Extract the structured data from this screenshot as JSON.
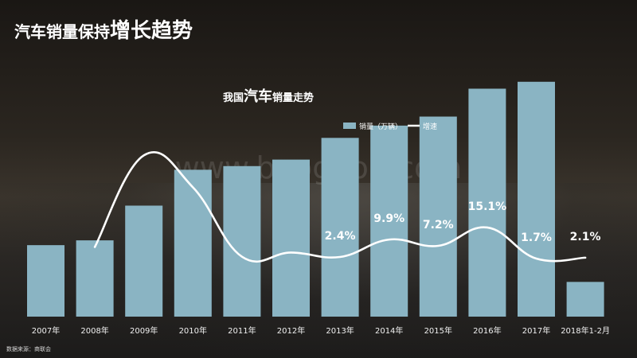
{
  "title": {
    "prefix": "汽车销量保持",
    "highlight": "增长趋势"
  },
  "subtitle": {
    "prefix": "我国",
    "highlight": "汽车",
    "suffix": "销量走势"
  },
  "source": "数据来源：商联会",
  "watermark": "www.baogao8.com",
  "colors": {
    "bar": "#8ab4c3",
    "line": "#ffffff",
    "text": "#ffffff"
  },
  "chart_data": {
    "type": "bar",
    "categories": [
      "2007年",
      "2008年",
      "2009年",
      "2010年",
      "2011年",
      "2012年",
      "2013年",
      "2014年",
      "2015年",
      "2016年",
      "2017年",
      "2018年1-2月"
    ],
    "series": [
      {
        "name": "销量（万辆）",
        "type": "bar",
        "values": [
          879,
          938,
          1365,
          1806,
          1851,
          1931,
          2198,
          2349,
          2460,
          2803,
          2888,
          427
        ]
      },
      {
        "name": "增速",
        "type": "line",
        "values": [
          null,
          6.7,
          46.2,
          32.4,
          2.5,
          4.3,
          2.4,
          9.9,
          7.2,
          15.1,
          1.7,
          2.1
        ]
      }
    ],
    "data_labels": [
      {
        "category": "2013年",
        "text": "2.4%"
      },
      {
        "category": "2014年",
        "text": "9.9%"
      },
      {
        "category": "2015年",
        "text": "7.2%"
      },
      {
        "category": "2016年",
        "text": "15.1%"
      },
      {
        "category": "2017年",
        "text": "1.7%"
      },
      {
        "category": "2018年1-2月",
        "text": "2.1%"
      }
    ],
    "ylim_bar": [
      0,
      3600
    ],
    "ylim_line": [
      0,
      60
    ],
    "legend": [
      "销量（万辆）",
      "增速"
    ],
    "legend_position": "top-right"
  }
}
